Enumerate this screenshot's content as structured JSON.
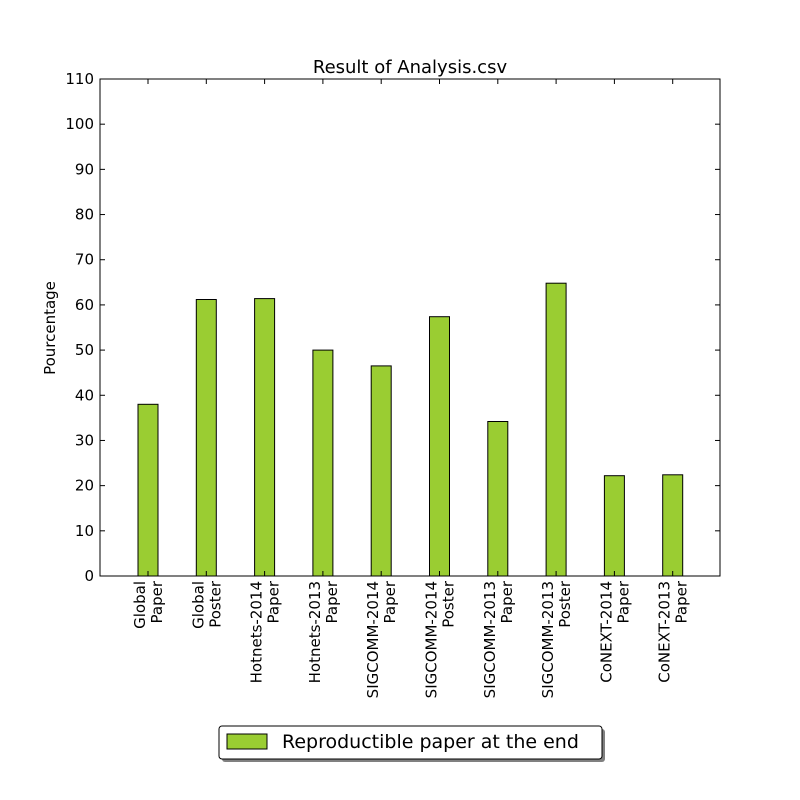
{
  "chart_data": {
    "type": "bar",
    "title": "Result of Analysis.csv",
    "xlabel": "",
    "ylabel": "Pourcentage",
    "ylim": [
      0,
      110
    ],
    "yticks": [
      0,
      10,
      20,
      30,
      40,
      50,
      60,
      70,
      80,
      90,
      100,
      110
    ],
    "categories": [
      [
        "Global",
        "Paper"
      ],
      [
        "Global",
        "Poster"
      ],
      [
        "Hotnets-2014",
        "Paper"
      ],
      [
        "Hotnets-2013",
        "Paper"
      ],
      [
        "SIGCOMM-2014",
        "Paper"
      ],
      [
        "SIGCOMM-2014",
        "Poster"
      ],
      [
        "SIGCOMM-2013",
        "Paper"
      ],
      [
        "SIGCOMM-2013",
        "Poster"
      ],
      [
        "CoNEXT-2014",
        "Paper"
      ],
      [
        "CoNEXT-2013",
        "Paper"
      ]
    ],
    "series": [
      {
        "name": "Reproductible paper at the end",
        "color": "#9acd32",
        "values": [
          38,
          61.2,
          61.4,
          50,
          46.5,
          57.4,
          34.2,
          64.8,
          22.2,
          22.4
        ]
      }
    ],
    "grid": false,
    "legend_position": "bottom-center"
  }
}
